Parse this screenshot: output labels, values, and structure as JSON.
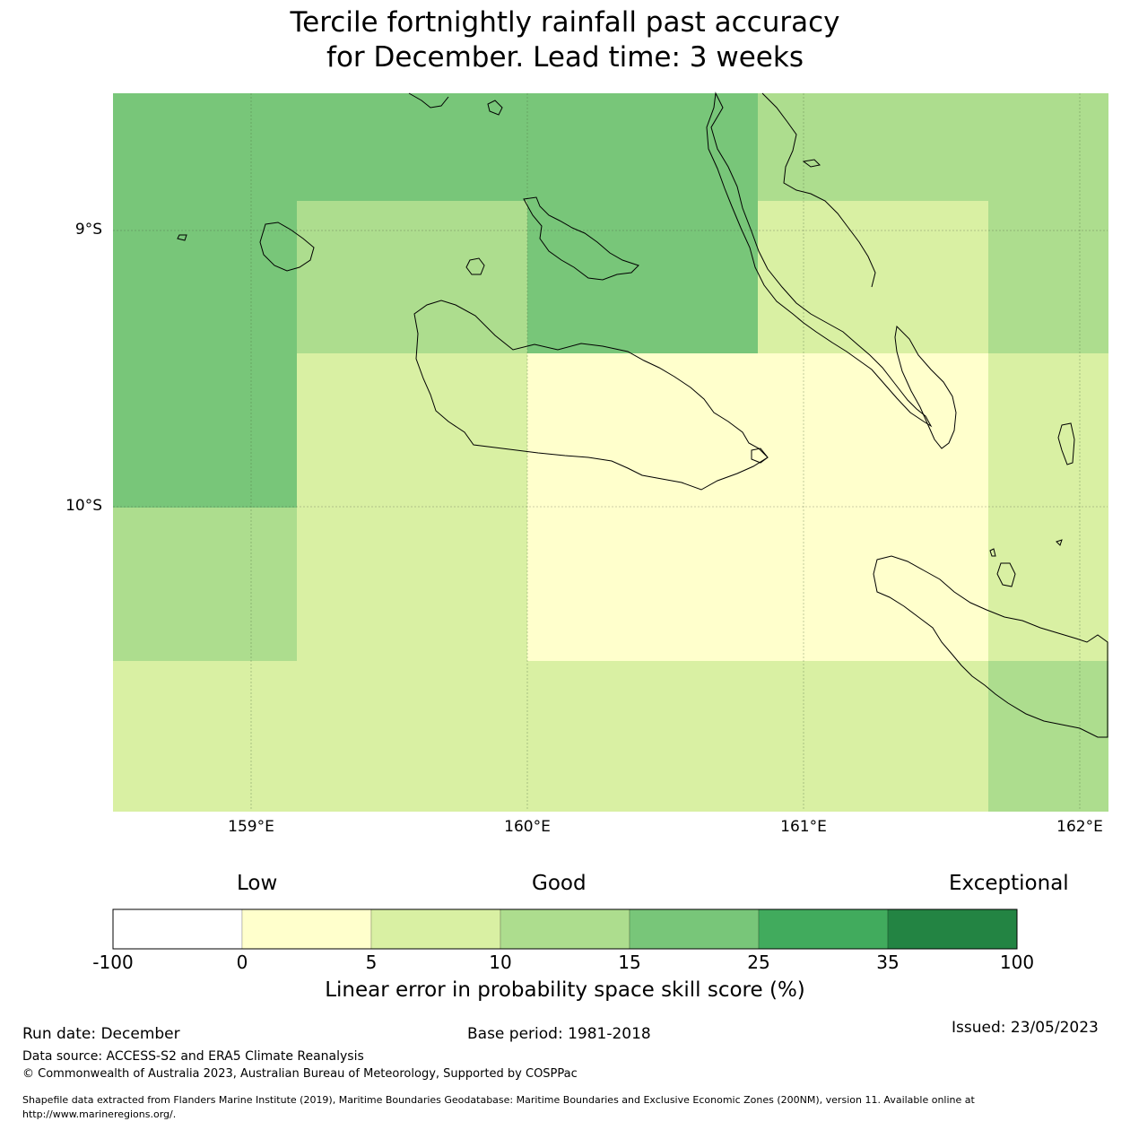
{
  "title": {
    "line1": "Tercile fortnightly rainfall past accuracy",
    "line2": "for December. Lead time: 3 weeks"
  },
  "map": {
    "lon_range": [
      158.5,
      162.1
    ],
    "lat_range": [
      -11.1,
      -8.5
    ],
    "lat_labels": [
      "9°S",
      "10°S"
    ],
    "lon_labels": [
      "159°E",
      "160°E",
      "161°E",
      "162°E"
    ],
    "grid_cells": [
      {
        "lon0": 158.5,
        "lon1": 159.167,
        "lat0": -8.5,
        "lat1": -8.889,
        "bin": 4
      },
      {
        "lon0": 159.167,
        "lon1": 160.833,
        "lat0": -8.5,
        "lat1": -8.889,
        "bin": 4
      },
      {
        "lon0": 160.833,
        "lon1": 161.667,
        "lat0": -8.5,
        "lat1": -8.889,
        "bin": 3
      },
      {
        "lon0": 161.667,
        "lon1": 162.1,
        "lat0": -8.5,
        "lat1": -8.889,
        "bin": 3
      },
      {
        "lon0": 158.5,
        "lon1": 159.167,
        "lat0": -8.889,
        "lat1": -9.444,
        "bin": 4
      },
      {
        "lon0": 159.167,
        "lon1": 160.0,
        "lat0": -8.889,
        "lat1": -9.444,
        "bin": 3
      },
      {
        "lon0": 160.0,
        "lon1": 160.833,
        "lat0": -8.889,
        "lat1": -9.444,
        "bin": 4
      },
      {
        "lon0": 160.833,
        "lon1": 161.667,
        "lat0": -8.889,
        "lat1": -9.444,
        "bin": 2
      },
      {
        "lon0": 161.667,
        "lon1": 162.1,
        "lat0": -8.889,
        "lat1": -9.444,
        "bin": 3
      },
      {
        "lon0": 158.5,
        "lon1": 159.167,
        "lat0": -9.444,
        "lat1": -10.0,
        "bin": 4
      },
      {
        "lon0": 159.167,
        "lon1": 160.0,
        "lat0": -9.444,
        "lat1": -10.0,
        "bin": 2
      },
      {
        "lon0": 160.0,
        "lon1": 160.833,
        "lat0": -9.444,
        "lat1": -10.0,
        "bin": 1
      },
      {
        "lon0": 160.833,
        "lon1": 161.667,
        "lat0": -9.444,
        "lat1": -10.0,
        "bin": 1
      },
      {
        "lon0": 161.667,
        "lon1": 162.1,
        "lat0": -9.444,
        "lat1": -10.0,
        "bin": 2
      },
      {
        "lon0": 158.5,
        "lon1": 159.167,
        "lat0": -10.0,
        "lat1": -10.556,
        "bin": 3
      },
      {
        "lon0": 159.167,
        "lon1": 160.0,
        "lat0": -10.0,
        "lat1": -10.556,
        "bin": 2
      },
      {
        "lon0": 160.0,
        "lon1": 160.833,
        "lat0": -10.0,
        "lat1": -10.556,
        "bin": 1
      },
      {
        "lon0": 160.833,
        "lon1": 161.667,
        "lat0": -10.0,
        "lat1": -10.556,
        "bin": 1
      },
      {
        "lon0": 161.667,
        "lon1": 162.1,
        "lat0": -10.0,
        "lat1": -10.556,
        "bin": 2
      },
      {
        "lon0": 158.5,
        "lon1": 159.167,
        "lat0": -10.556,
        "lat1": -11.1,
        "bin": 2
      },
      {
        "lon0": 159.167,
        "lon1": 160.0,
        "lat0": -10.556,
        "lat1": -11.1,
        "bin": 2
      },
      {
        "lon0": 160.0,
        "lon1": 160.833,
        "lat0": -10.556,
        "lat1": -11.1,
        "bin": 2
      },
      {
        "lon0": 160.833,
        "lon1": 161.667,
        "lat0": -10.556,
        "lat1": -11.1,
        "bin": 2
      },
      {
        "lon0": 161.667,
        "lon1": 162.1,
        "lat0": -10.556,
        "lat1": -11.1,
        "bin": 3
      }
    ]
  },
  "colorbar": {
    "category_labels": {
      "low": "Low",
      "good": "Good",
      "exceptional": "Exceptional"
    },
    "ticks": [
      "-100",
      "0",
      "5",
      "10",
      "15",
      "25",
      "35",
      "100"
    ],
    "colors": [
      "#ffffff",
      "#ffffcc",
      "#d9f0a3",
      "#addd8e",
      "#78c679",
      "#41ab5d",
      "#238443"
    ],
    "xlabel": "Linear error in probability space skill score (%)"
  },
  "footer": {
    "run_date": "Run date: December",
    "base_period": "Base period: 1981-2018",
    "issued": "Issued: 23/05/2023",
    "data_source": "Data source: ACCESS-S2 and ERA5 Climate Reanalysis",
    "copyright": "© Commonwealth of Australia 2023, Australian Bureau of Meteorology, Supported by COSPPac",
    "shapefile_line1": "Shapefile data extracted from Flanders Marine Institute (2019), Maritime Boundaries Geodatabase: Maritime Boundaries and Exclusive Economic Zones (200NM), version 11. Available online at",
    "shapefile_line2": "http://www.marineregions.org/."
  }
}
